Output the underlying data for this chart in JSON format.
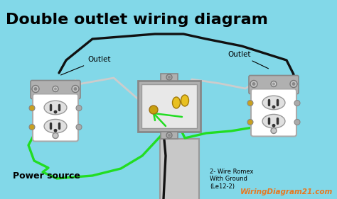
{
  "bg_color": "#82d8e8",
  "title": "Double outlet wiring diagram",
  "title_fontsize": 16,
  "watermark": "WiringDiagram21.com",
  "watermark_color": "#e87820",
  "label_outlet_left": "Outlet",
  "label_outlet_right": "Outlet",
  "label_power": "Power source",
  "label_romex": "2- Wire Romex\nWith Ground\n(Le12-2)",
  "wire_black": "#111111",
  "wire_green": "#22dd22",
  "wire_white": "#cccccc",
  "wire_bare": "#c8a020",
  "outlet_body": "#ffffff",
  "outlet_border": "#999999",
  "outlet_mount": "#aaaaaa",
  "box_gray": "#a0a0a0",
  "box_inner": "#f0f0f0",
  "conduit_color": "#aaaaaa"
}
